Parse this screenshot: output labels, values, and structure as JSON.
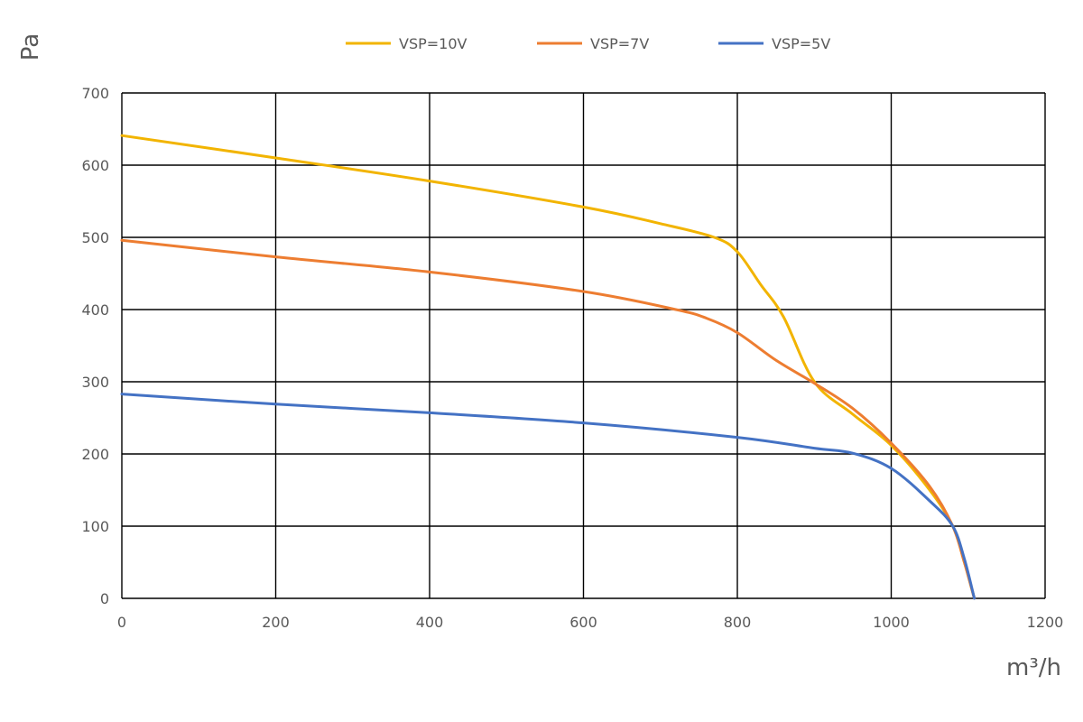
{
  "chart_data": {
    "type": "line",
    "xlabel": "m³/h",
    "ylabel": "Pa",
    "xlim": [
      0,
      1200
    ],
    "ylim": [
      0,
      700
    ],
    "x_ticks": [
      0,
      200,
      400,
      600,
      800,
      1000,
      1200
    ],
    "y_ticks": [
      0,
      100,
      200,
      300,
      400,
      500,
      600,
      700
    ],
    "grid": true,
    "legend_position": "top",
    "series": [
      {
        "name": "VSP=10V",
        "color": "#F2B400",
        "points": [
          [
            0,
            641
          ],
          [
            200,
            610
          ],
          [
            400,
            578
          ],
          [
            600,
            542
          ],
          [
            700,
            519
          ],
          [
            770,
            500
          ],
          [
            800,
            480
          ],
          [
            830,
            435
          ],
          [
            860,
            390
          ],
          [
            900,
            300
          ],
          [
            950,
            255
          ],
          [
            1000,
            212
          ],
          [
            1050,
            150
          ],
          [
            1080,
            100
          ],
          [
            1095,
            50
          ],
          [
            1108,
            0
          ]
        ]
      },
      {
        "name": "VSP=7V",
        "color": "#ED7D31",
        "points": [
          [
            0,
            496
          ],
          [
            200,
            473
          ],
          [
            400,
            452
          ],
          [
            600,
            425
          ],
          [
            720,
            400
          ],
          [
            760,
            388
          ],
          [
            800,
            368
          ],
          [
            850,
            330
          ],
          [
            900,
            298
          ],
          [
            950,
            263
          ],
          [
            1000,
            215
          ],
          [
            1050,
            155
          ],
          [
            1080,
            100
          ],
          [
            1095,
            50
          ],
          [
            1108,
            0
          ]
        ]
      },
      {
        "name": "VSP=5V",
        "color": "#4472C4",
        "points": [
          [
            0,
            283
          ],
          [
            200,
            269
          ],
          [
            400,
            257
          ],
          [
            600,
            243
          ],
          [
            800,
            223
          ],
          [
            900,
            208
          ],
          [
            950,
            201
          ],
          [
            1000,
            180
          ],
          [
            1050,
            135
          ],
          [
            1080,
            100
          ],
          [
            1095,
            55
          ],
          [
            1108,
            0
          ]
        ]
      }
    ]
  }
}
